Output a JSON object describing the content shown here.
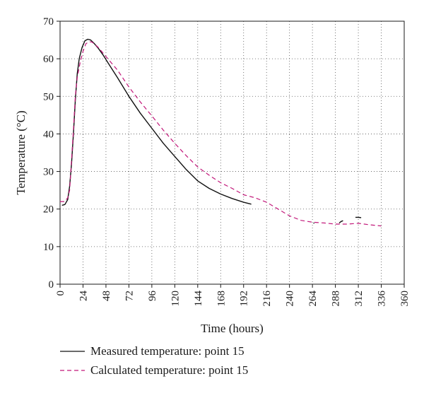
{
  "chart_data": {
    "type": "line",
    "xlabel": "Time (hours)",
    "ylabel": "Temperature (°C)",
    "xlim": [
      0,
      360
    ],
    "ylim": [
      0,
      70
    ],
    "xticks": [
      0,
      24,
      48,
      72,
      96,
      120,
      144,
      168,
      192,
      216,
      240,
      264,
      288,
      312,
      336,
      360
    ],
    "yticks": [
      0,
      10,
      20,
      30,
      40,
      50,
      60,
      70
    ],
    "grid": "dotted",
    "legend_position": "bottom-left",
    "series": [
      {
        "name": "Measured temperature: point 15",
        "color": "#111111",
        "style": "solid",
        "segments": [
          [
            [
              2,
              21
            ],
            [
              5,
              21.2
            ],
            [
              8,
              22.5
            ],
            [
              10,
              26
            ],
            [
              12,
              32
            ],
            [
              14,
              40
            ],
            [
              16,
              49
            ],
            [
              18,
              56
            ],
            [
              20,
              60
            ],
            [
              23,
              63
            ],
            [
              26,
              64.8
            ],
            [
              29,
              65.2
            ],
            [
              32,
              65
            ],
            [
              36,
              64
            ],
            [
              40,
              62.8
            ],
            [
              45,
              61
            ],
            [
              50,
              59
            ],
            [
              60,
              55
            ],
            [
              72,
              50
            ],
            [
              84,
              45.5
            ],
            [
              96,
              41.5
            ],
            [
              108,
              37.5
            ],
            [
              120,
              34
            ],
            [
              132,
              30.5
            ],
            [
              144,
              27.5
            ],
            [
              156,
              25.5
            ],
            [
              168,
              24
            ],
            [
              180,
              22.8
            ],
            [
              192,
              21.8
            ],
            [
              200,
              21.3
            ]
          ],
          [
            [
              265,
              16.3
            ],
            [
              266,
              16.2
            ]
          ],
          [
            [
              292,
              16.3
            ],
            [
              294,
              16.7
            ],
            [
              296,
              16.9
            ]
          ],
          [
            [
              309,
              17.8
            ],
            [
              312,
              17.8
            ],
            [
              315,
              17.7
            ]
          ]
        ]
      },
      {
        "name": "Calculated temperature: point 15",
        "color": "#c2187a",
        "style": "dashed",
        "segments": [
          [
            [
              0,
              22
            ],
            [
              5,
              22
            ],
            [
              8,
              23
            ],
            [
              10,
              25
            ],
            [
              11,
              29
            ],
            [
              12,
              33
            ],
            [
              14,
              41
            ],
            [
              16,
              50
            ],
            [
              18,
              55
            ],
            [
              21,
              59
            ],
            [
              24,
              62
            ],
            [
              27,
              64
            ],
            [
              30,
              64.5
            ],
            [
              33,
              64.5
            ],
            [
              36,
              64
            ],
            [
              40,
              63
            ],
            [
              45,
              61.5
            ],
            [
              50,
              60
            ],
            [
              60,
              57
            ],
            [
              72,
              52.5
            ],
            [
              84,
              48.5
            ],
            [
              96,
              44.8
            ],
            [
              108,
              41
            ],
            [
              120,
              37.5
            ],
            [
              132,
              34.2
            ],
            [
              144,
              31.2
            ],
            [
              156,
              29
            ],
            [
              168,
              27
            ],
            [
              180,
              25.5
            ],
            [
              192,
              23.8
            ],
            [
              204,
              23
            ],
            [
              216,
              21.8
            ],
            [
              228,
              20
            ],
            [
              240,
              18.2
            ],
            [
              252,
              17
            ],
            [
              264,
              16.5
            ],
            [
              276,
              16.3
            ],
            [
              288,
              16
            ],
            [
              300,
              16
            ],
            [
              312,
              16.2
            ],
            [
              324,
              15.8
            ],
            [
              336,
              15.5
            ]
          ]
        ]
      }
    ]
  }
}
